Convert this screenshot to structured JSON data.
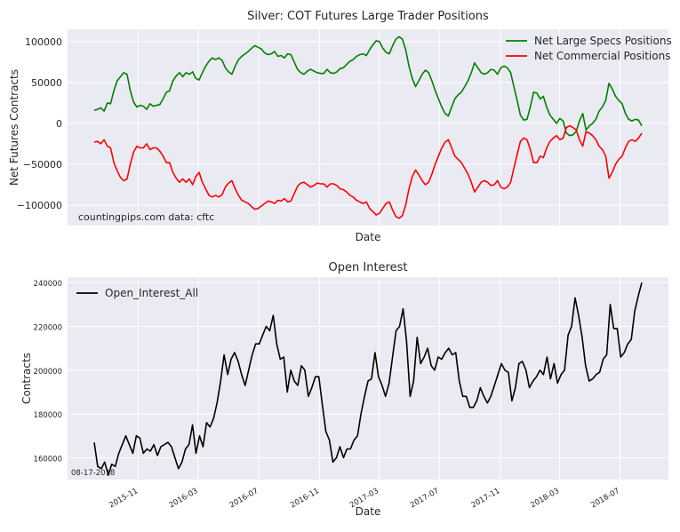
{
  "chart_data": [
    {
      "type": "line",
      "title": "Silver: COT Futures Large Trader Positions",
      "xlabel": "Date",
      "ylabel": "Net Futures Contracts",
      "ylim": [
        -125000,
        115000
      ],
      "yticks": [
        -100000,
        -50000,
        0,
        50000,
        100000
      ],
      "ytick_labels": [
        "−100000",
        "−50000",
        "0",
        "50000",
        "100000"
      ],
      "xticks_shown": false,
      "grid": true,
      "legend_position": "top-right",
      "annotation": "countingpips.com      data: cftc",
      "x_range": [
        "2015-08-04",
        "2018-08-14"
      ],
      "series": [
        {
          "name": "Net Large Specs Positions",
          "color": "#008000",
          "values": [
            16000,
            17000,
            19000,
            15000,
            25000,
            24000,
            40000,
            52000,
            57000,
            62000,
            60000,
            40000,
            26000,
            20000,
            22000,
            21000,
            17000,
            24000,
            21000,
            22000,
            23000,
            30000,
            38000,
            40000,
            52000,
            58000,
            62000,
            57000,
            62000,
            60000,
            63000,
            55000,
            53000,
            62000,
            70000,
            76000,
            80000,
            78000,
            80000,
            77000,
            68000,
            63000,
            60000,
            70000,
            78000,
            82000,
            85000,
            88000,
            92000,
            95000,
            93000,
            91000,
            86000,
            84000,
            85000,
            88000,
            82000,
            83000,
            80000,
            85000,
            84000,
            75000,
            66000,
            62000,
            60000,
            64000,
            66000,
            64000,
            62000,
            61000,
            61000,
            66000,
            62000,
            61000,
            63000,
            67000,
            68000,
            72000,
            76000,
            78000,
            82000,
            84000,
            85000,
            83000,
            90000,
            96000,
            101000,
            100000,
            92000,
            87000,
            85000,
            95000,
            103000,
            106000,
            103000,
            90000,
            70000,
            55000,
            45000,
            52000,
            60000,
            65000,
            62000,
            52000,
            40000,
            30000,
            20000,
            12000,
            9000,
            20000,
            30000,
            35000,
            38000,
            45000,
            52000,
            62000,
            74000,
            68000,
            62000,
            60000,
            62000,
            66000,
            65000,
            60000,
            68000,
            70000,
            68000,
            62000,
            45000,
            28000,
            10000,
            4000,
            5000,
            20000,
            38000,
            37000,
            30000,
            33000,
            20000,
            10000,
            5000,
            0,
            6000,
            3000,
            -12000,
            -15000,
            -14000,
            -10000,
            3000,
            12000,
            -8000,
            -3000,
            0,
            5000,
            15000,
            20000,
            28000,
            49000,
            42000,
            33000,
            28000,
            24000,
            12000,
            5000,
            3000,
            5000,
            4000,
            -3000
          ]
        },
        {
          "name": "Net Commercial Positions",
          "color": "#ff0000",
          "values": [
            -23000,
            -22000,
            -25000,
            -20000,
            -28000,
            -30000,
            -48000,
            -58000,
            -66000,
            -70000,
            -68000,
            -50000,
            -35000,
            -28000,
            -30000,
            -30000,
            -25000,
            -32000,
            -30000,
            -30000,
            -34000,
            -40000,
            -48000,
            -48000,
            -60000,
            -67000,
            -72000,
            -68000,
            -72000,
            -68000,
            -75000,
            -65000,
            -60000,
            -72000,
            -80000,
            -88000,
            -90000,
            -88000,
            -90000,
            -87000,
            -78000,
            -73000,
            -70000,
            -80000,
            -88000,
            -94000,
            -96000,
            -98000,
            -102000,
            -105000,
            -104000,
            -101000,
            -98000,
            -95000,
            -96000,
            -98000,
            -94000,
            -95000,
            -92000,
            -96000,
            -95000,
            -86000,
            -77000,
            -73000,
            -72000,
            -75000,
            -78000,
            -76000,
            -73000,
            -74000,
            -74000,
            -78000,
            -74000,
            -74000,
            -76000,
            -80000,
            -81000,
            -84000,
            -88000,
            -90000,
            -94000,
            -96000,
            -98000,
            -96000,
            -104000,
            -108000,
            -112000,
            -110000,
            -104000,
            -98000,
            -96000,
            -106000,
            -114000,
            -116000,
            -113000,
            -100000,
            -80000,
            -65000,
            -57000,
            -63000,
            -70000,
            -75000,
            -72000,
            -62000,
            -50000,
            -40000,
            -30000,
            -23000,
            -20000,
            -30000,
            -40000,
            -44000,
            -48000,
            -55000,
            -62000,
            -72000,
            -84000,
            -78000,
            -72000,
            -70000,
            -72000,
            -76000,
            -75000,
            -70000,
            -78000,
            -80000,
            -78000,
            -72000,
            -55000,
            -38000,
            -22000,
            -18000,
            -20000,
            -32000,
            -48000,
            -48000,
            -40000,
            -42000,
            -30000,
            -22000,
            -18000,
            -15000,
            -20000,
            -18000,
            -5000,
            -3000,
            -5000,
            -8000,
            -20000,
            -28000,
            -10000,
            -12000,
            -15000,
            -20000,
            -28000,
            -32000,
            -40000,
            -67000,
            -60000,
            -50000,
            -44000,
            -40000,
            -30000,
            -22000,
            -20000,
            -22000,
            -18000,
            -12000
          ]
        }
      ]
    },
    {
      "type": "line",
      "title": "Open Interest",
      "xlabel": "Date",
      "ylabel": "Contracts",
      "ylim": [
        150000,
        242500
      ],
      "yticks": [
        160000,
        180000,
        200000,
        220000,
        240000
      ],
      "ytick_labels": [
        "160000",
        "180000",
        "200000",
        "220000",
        "240000"
      ],
      "xticks": [
        "2015-11",
        "2016-03",
        "2016-07",
        "2016-11",
        "2017-03",
        "2017-07",
        "2017-11",
        "2018-03",
        "2018-07"
      ],
      "x_range": [
        "2015-08-04",
        "2018-08-14"
      ],
      "grid": true,
      "legend_position": "top-left",
      "annotation": "08-17-2018",
      "series": [
        {
          "name": "Open_Interest_All",
          "color": "#000000",
          "values": [
            167000,
            156000,
            155000,
            158000,
            152000,
            157000,
            156000,
            162000,
            166000,
            170000,
            166000,
            162000,
            170000,
            169000,
            162000,
            164000,
            163000,
            166000,
            161000,
            165000,
            166000,
            167000,
            165000,
            160000,
            155000,
            158000,
            164000,
            166000,
            175000,
            162000,
            170000,
            165000,
            176000,
            174000,
            178000,
            185000,
            195000,
            207000,
            198000,
            205000,
            208000,
            204000,
            198000,
            193000,
            200000,
            207000,
            212000,
            212000,
            216000,
            220000,
            218000,
            225000,
            212000,
            205000,
            206000,
            190000,
            200000,
            195000,
            193000,
            202000,
            200000,
            188000,
            192000,
            197000,
            197000,
            184000,
            172000,
            168000,
            158000,
            160000,
            165000,
            160000,
            164000,
            164000,
            168000,
            170000,
            180000,
            188000,
            195000,
            196000,
            208000,
            197000,
            193000,
            188000,
            194000,
            206000,
            218000,
            220000,
            228000,
            213000,
            188000,
            195000,
            215000,
            203000,
            206000,
            210000,
            202000,
            200000,
            206000,
            205000,
            208000,
            210000,
            207000,
            208000,
            195000,
            188000,
            188000,
            183000,
            183000,
            186000,
            192000,
            188000,
            185000,
            188000,
            193000,
            198000,
            203000,
            200000,
            199000,
            186000,
            192000,
            203000,
            204000,
            200000,
            192000,
            195000,
            197000,
            200000,
            198000,
            206000,
            196000,
            203000,
            194000,
            198000,
            200000,
            216000,
            220000,
            233000,
            225000,
            215000,
            202000,
            195000,
            196000,
            198000,
            199000,
            205000,
            207000,
            230000,
            219000,
            219000,
            206000,
            208000,
            212000,
            214000,
            227000,
            234000,
            240000
          ]
        }
      ]
    }
  ]
}
